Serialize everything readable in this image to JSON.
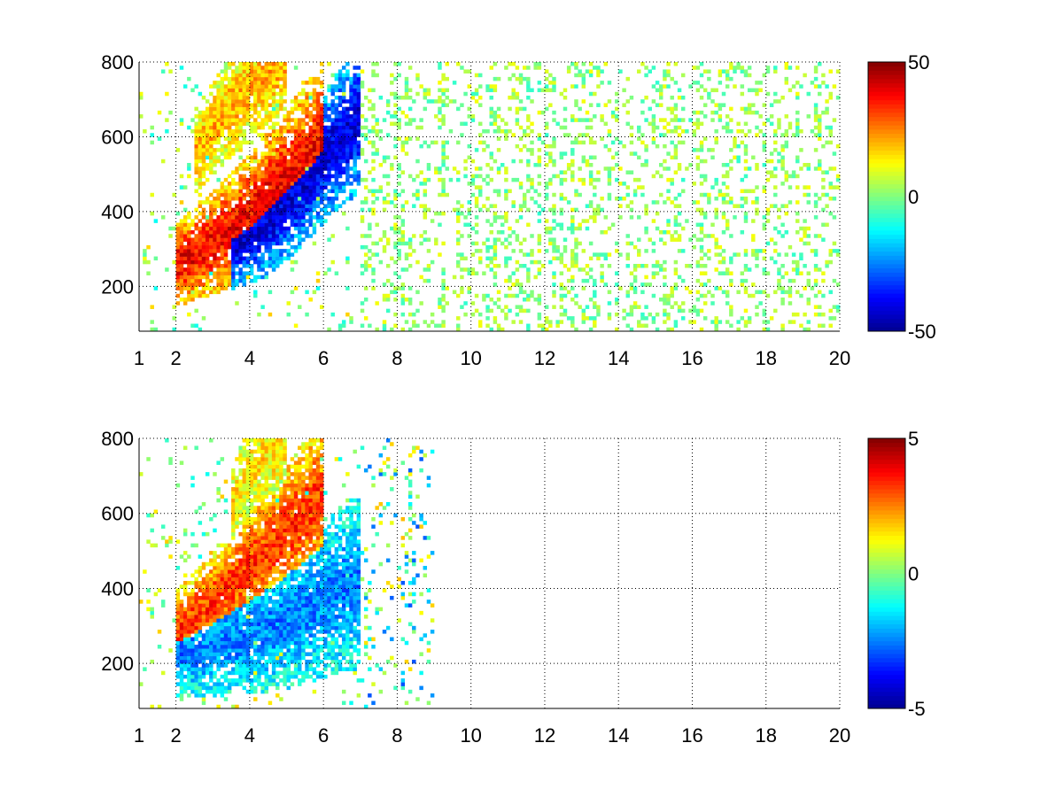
{
  "figure": {
    "background": "#ffffff"
  },
  "colormap": [
    "#00008f",
    "#0000ff",
    "#0080ff",
    "#00ffff",
    "#80ff80",
    "#ffff00",
    "#ff8000",
    "#ff0000",
    "#800000"
  ],
  "chart_data": [
    {
      "type": "heatmap",
      "title": "",
      "xlabel": "",
      "ylabel": "",
      "xlim": [
        1,
        20
      ],
      "ylim": [
        80,
        800
      ],
      "xticks": [
        1,
        2,
        4,
        6,
        8,
        10,
        12,
        14,
        16,
        18,
        20
      ],
      "yticks": [
        200,
        400,
        600,
        800
      ],
      "grid": true,
      "colorbar": {
        "min": -50,
        "max": 50,
        "ticks": [
          50,
          0,
          -50
        ]
      },
      "features": [
        {
          "desc": "dominant positive band",
          "x": [
            2.0,
            2.5,
            3.0,
            3.5,
            4.0,
            4.5,
            5.0,
            5.5,
            6.0
          ],
          "y": [
            260,
            285,
            315,
            350,
            395,
            440,
            490,
            540,
            590
          ],
          "value": 38
        },
        {
          "desc": "strong negative band",
          "x": [
            3.5,
            4.0,
            4.5,
            5.0,
            5.5,
            6.0,
            6.5,
            7.0
          ],
          "y": [
            300,
            330,
            370,
            420,
            480,
            540,
            600,
            650
          ],
          "value": -42
        },
        {
          "desc": "upper positive arc",
          "x": [
            2.5,
            3.0,
            3.5,
            4.0,
            4.5,
            5.0
          ],
          "y": [
            560,
            620,
            680,
            730,
            770,
            800
          ],
          "value": 20
        }
      ],
      "scatter_region": {
        "x": [
          7,
          20
        ],
        "values": [
          -8,
          12
        ],
        "density": 0.25
      }
    },
    {
      "type": "heatmap",
      "title": "",
      "xlabel": "",
      "ylabel": "",
      "xlim": [
        1,
        20
      ],
      "ylim": [
        80,
        800
      ],
      "xticks": [
        1,
        2,
        4,
        6,
        8,
        10,
        12,
        14,
        16,
        18,
        20
      ],
      "yticks": [
        200,
        400,
        600,
        800
      ],
      "grid": true,
      "colorbar": {
        "min": -5,
        "max": 5,
        "ticks": [
          5,
          0,
          -5
        ]
      },
      "features": [
        {
          "desc": "positive ridge",
          "x": [
            2.0,
            2.5,
            3.0,
            3.5,
            4.0,
            4.5,
            5.0,
            5.5,
            6.0
          ],
          "y": [
            280,
            320,
            365,
            410,
            455,
            500,
            550,
            600,
            660
          ],
          "value": 3.2
        },
        {
          "desc": "negative ridge",
          "x": [
            2.0,
            3.0,
            4.0,
            5.0,
            6.0,
            7.0
          ],
          "y": [
            225,
            250,
            280,
            320,
            370,
            420
          ],
          "value": -2.5
        },
        {
          "desc": "upper arc",
          "x": [
            3.5,
            4.0,
            4.5,
            5.0
          ],
          "y": [
            620,
            700,
            760,
            790
          ],
          "value": 1.5
        }
      ],
      "scatter_region": {
        "x": [
          7,
          9
        ],
        "values": [
          -3,
          2
        ],
        "density": 0.15
      }
    }
  ]
}
